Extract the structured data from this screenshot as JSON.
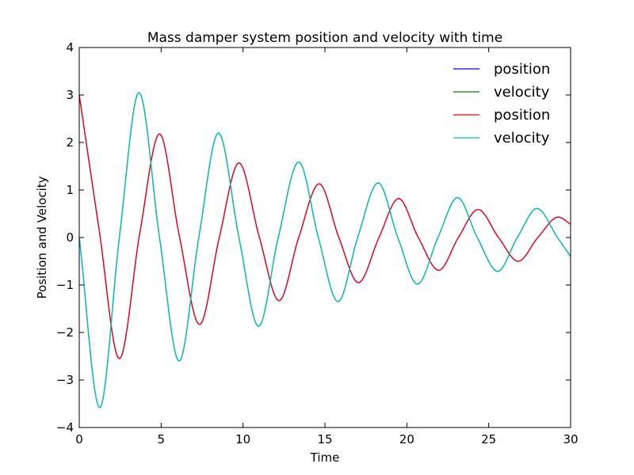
{
  "chart_data": {
    "type": "line",
    "title": "Mass damper system position and velocity with time",
    "xlabel": "Time",
    "ylabel": "Position and Velocity",
    "xlim": [
      0,
      30
    ],
    "ylim": [
      -4,
      4
    ],
    "xticks": [
      0,
      5,
      10,
      15,
      20,
      25,
      30
    ],
    "xtick_labels": [
      "0",
      "5",
      "10",
      "15",
      "20",
      "25",
      "30"
    ],
    "yticks": [
      -4,
      -3,
      -2,
      -1,
      0,
      1,
      2,
      3,
      4
    ],
    "ytick_labels": [
      "−4",
      "−3",
      "−2",
      "−1",
      "0",
      "1",
      "2",
      "3",
      "4"
    ],
    "grid": false,
    "legend": "top-right",
    "series": [
      {
        "name": "position",
        "color": "#0000ff",
        "x": [
          0,
          1.2,
          2.45,
          3.7,
          4.9,
          6.1,
          7.35,
          8.55,
          9.75,
          11.0,
          12.2,
          13.4,
          14.65,
          15.85,
          17.05,
          18.3,
          19.5,
          20.7,
          21.95,
          23.15,
          24.35,
          25.6,
          26.8,
          28.0,
          29.25,
          30
        ],
        "y": [
          3.0,
          0.2,
          -2.55,
          0.1,
          2.18,
          0.05,
          -1.83,
          0.0,
          1.57,
          0.0,
          -1.33,
          0.0,
          1.13,
          0.0,
          -0.95,
          0.0,
          0.82,
          0.0,
          -0.69,
          0.0,
          0.59,
          0.0,
          -0.5,
          0.0,
          0.43,
          0.28
        ]
      },
      {
        "name": "velocity",
        "color": "#008000",
        "x": [
          0,
          1.25,
          2.45,
          3.65,
          4.9,
          6.1,
          7.3,
          8.5,
          9.75,
          10.95,
          12.15,
          13.4,
          14.6,
          15.8,
          17.0,
          18.25,
          19.45,
          20.65,
          21.9,
          23.1,
          24.3,
          25.55,
          26.75,
          27.95,
          29.2,
          30
        ],
        "y": [
          0.0,
          -3.58,
          0.0,
          3.05,
          0.0,
          -2.6,
          0.0,
          2.2,
          0.0,
          -1.87,
          0.0,
          1.59,
          0.0,
          -1.35,
          0.0,
          1.15,
          0.0,
          -0.98,
          0.0,
          0.84,
          0.0,
          -0.71,
          0.0,
          0.61,
          0.0,
          -0.4
        ]
      },
      {
        "name": "position",
        "color": "#ff0000",
        "x": [
          0,
          1.2,
          2.45,
          3.7,
          4.9,
          6.1,
          7.35,
          8.55,
          9.75,
          11.0,
          12.2,
          13.4,
          14.65,
          15.85,
          17.05,
          18.3,
          19.5,
          20.7,
          21.95,
          23.15,
          24.35,
          25.6,
          26.8,
          28.0,
          29.25,
          30
        ],
        "y": [
          3.0,
          0.2,
          -2.55,
          0.1,
          2.18,
          0.05,
          -1.83,
          0.0,
          1.57,
          0.0,
          -1.33,
          0.0,
          1.13,
          0.0,
          -0.95,
          0.0,
          0.82,
          0.0,
          -0.69,
          0.0,
          0.59,
          0.0,
          -0.5,
          0.0,
          0.43,
          0.28
        ]
      },
      {
        "name": "velocity",
        "color": "#00bfbf",
        "x": [
          0,
          1.25,
          2.45,
          3.65,
          4.9,
          6.1,
          7.3,
          8.5,
          9.75,
          10.95,
          12.15,
          13.4,
          14.6,
          15.8,
          17.0,
          18.25,
          19.45,
          20.65,
          21.9,
          23.1,
          24.3,
          25.55,
          26.75,
          27.95,
          29.2,
          30
        ],
        "y": [
          0.0,
          -3.58,
          0.0,
          3.05,
          0.0,
          -2.6,
          0.0,
          2.2,
          0.0,
          -1.87,
          0.0,
          1.59,
          0.0,
          -1.35,
          0.0,
          1.15,
          0.0,
          -0.98,
          0.0,
          0.84,
          0.0,
          -0.71,
          0.0,
          0.61,
          0.0,
          -0.4
        ]
      }
    ]
  }
}
